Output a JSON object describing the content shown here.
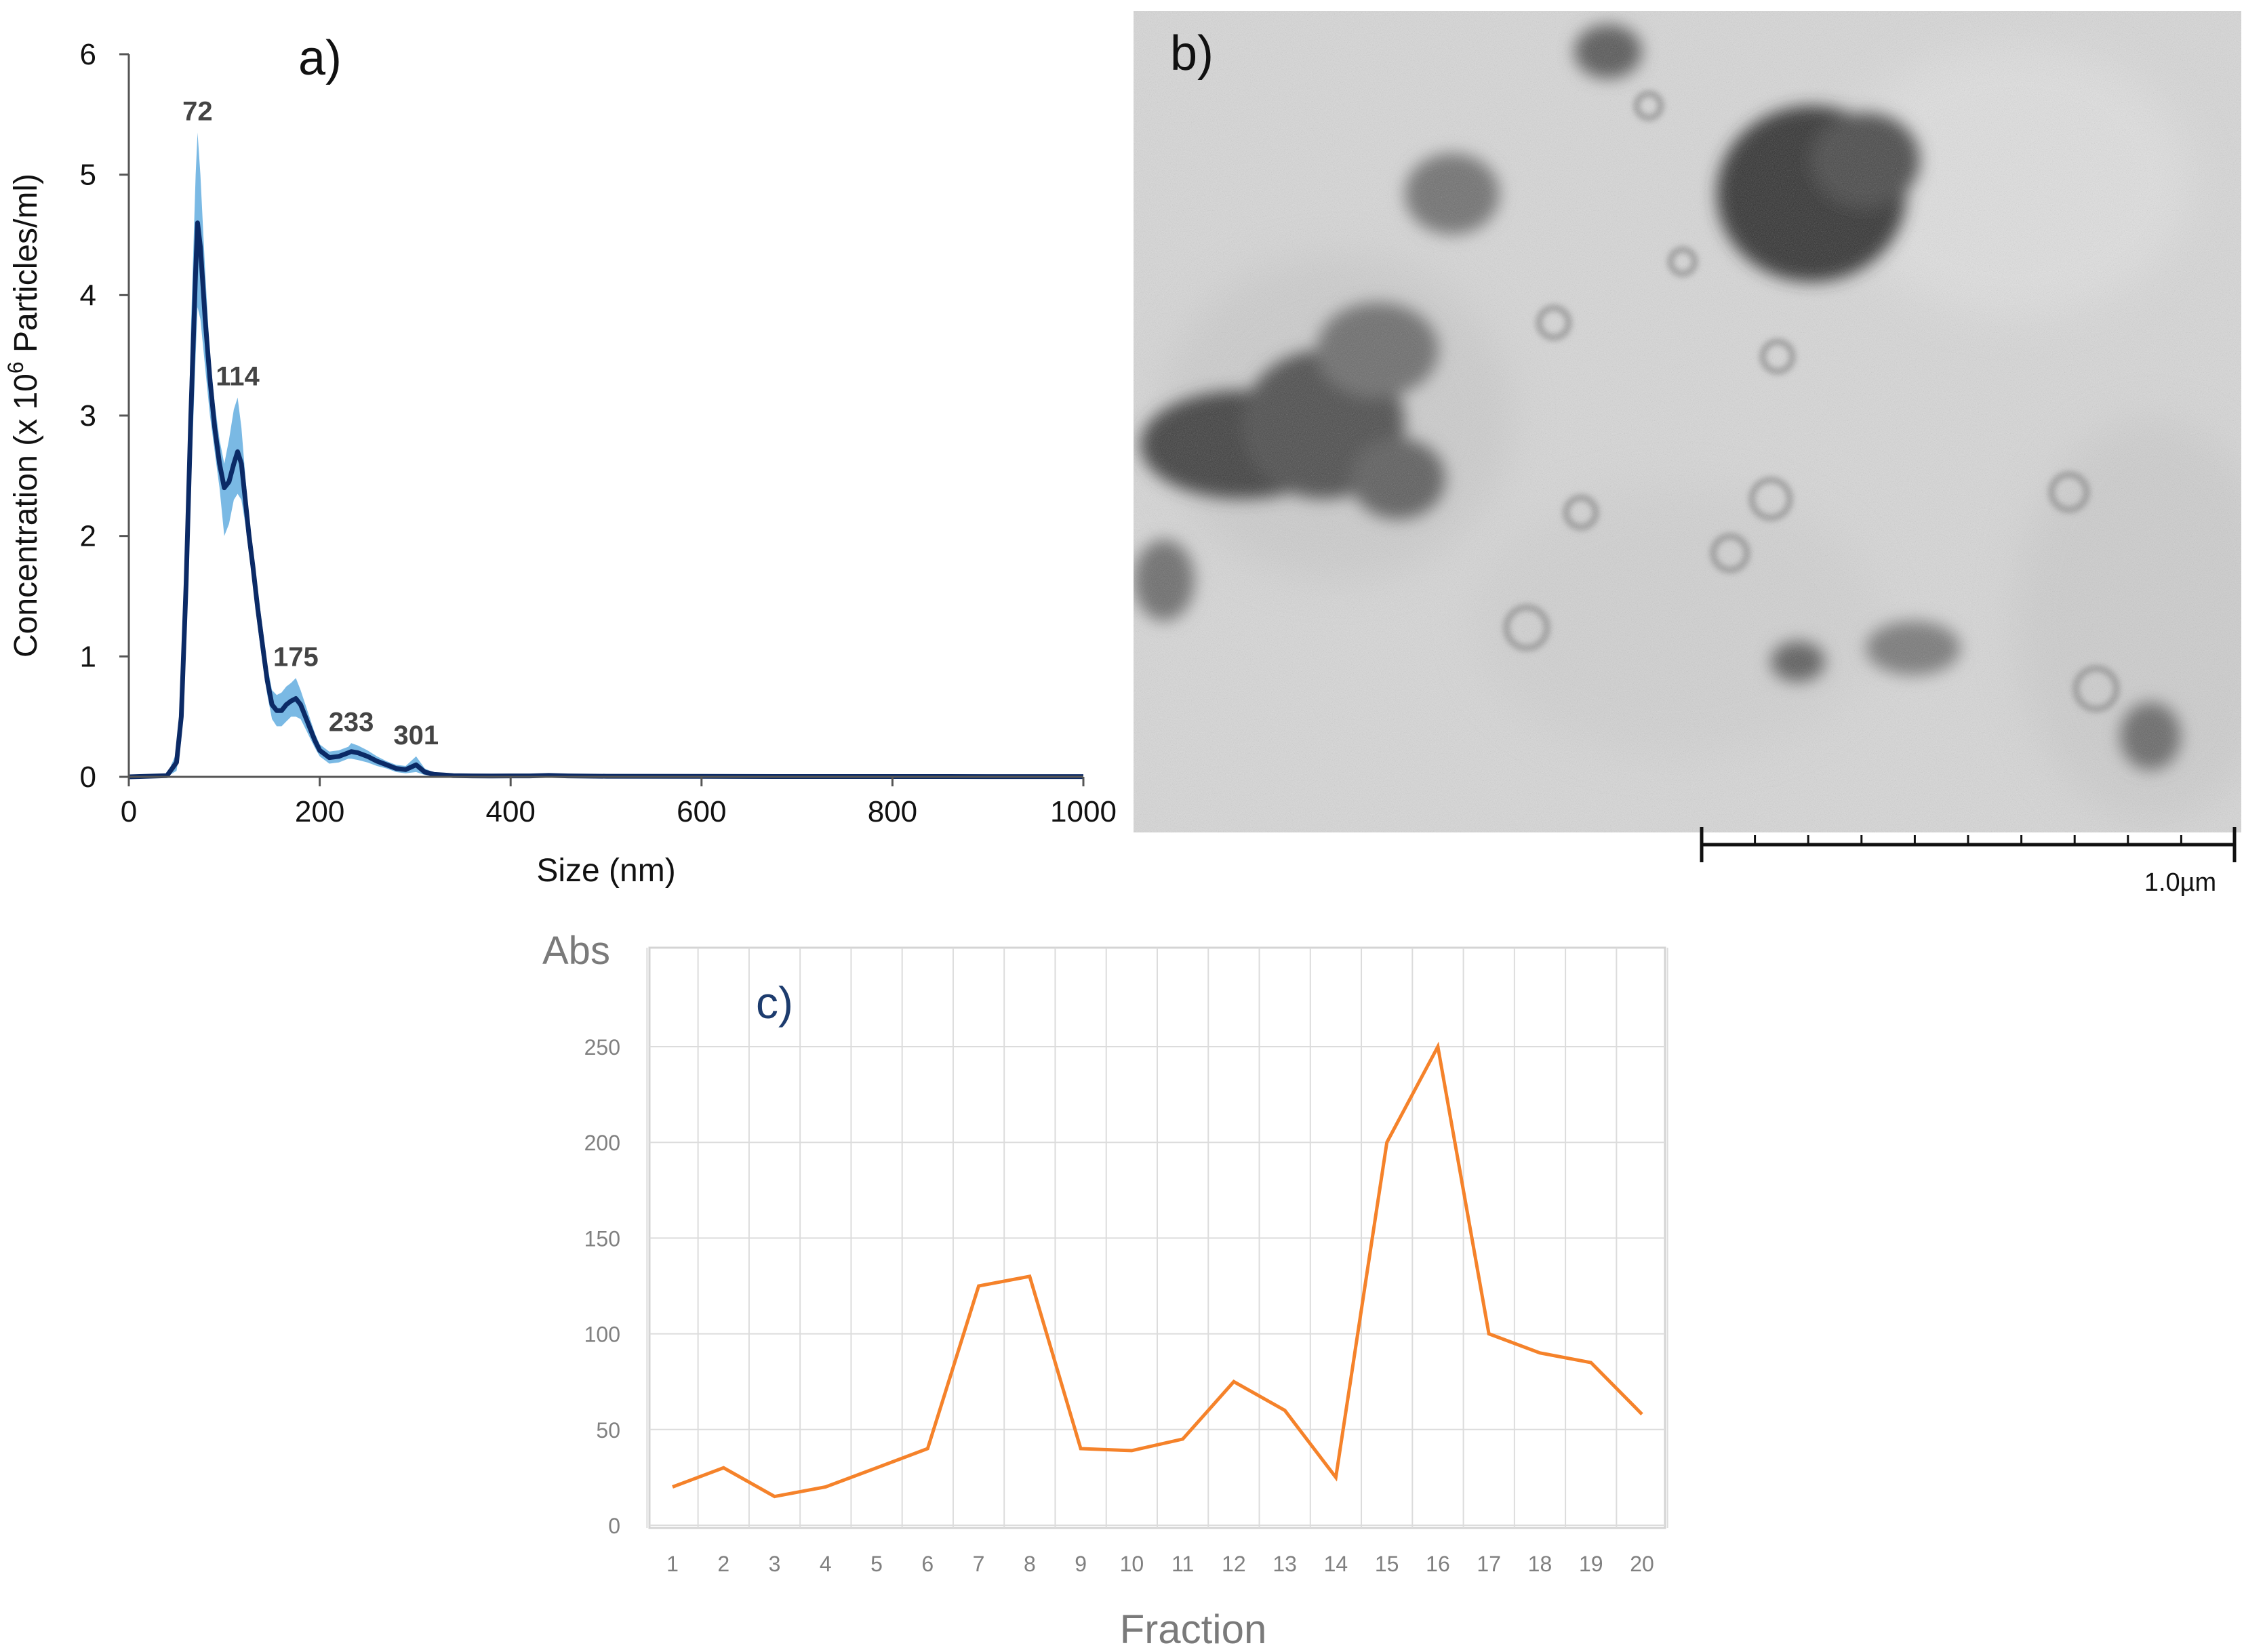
{
  "panels": {
    "a": {
      "label": "a)",
      "chart_data": {
        "type": "line",
        "xlabel": "Size (nm)",
        "ylabel_pre": "Concentration (x 10",
        "ylabel_sup": "6",
        "ylabel_post": " Particles/ml)",
        "xlim": [
          0,
          1000
        ],
        "ylim": [
          0,
          6
        ],
        "xticks": [
          0,
          200,
          400,
          600,
          800,
          1000
        ],
        "yticks": [
          0,
          1,
          2,
          3,
          4,
          5,
          6
        ],
        "grid": false,
        "series": [
          {
            "role": "mean",
            "color": "#0b2a66",
            "x": [
              0,
              40,
              50,
              55,
              60,
              65,
              70,
              72,
              75,
              80,
              85,
              90,
              95,
              100,
              105,
              110,
              114,
              118,
              122,
              126,
              130,
              135,
              140,
              145,
              150,
              155,
              160,
              165,
              170,
              175,
              180,
              185,
              190,
              195,
              200,
              210,
              220,
              230,
              233,
              240,
              250,
              260,
              270,
              280,
              290,
              301,
              310,
              320,
              330,
              340,
              360,
              380,
              400,
              420,
              440,
              460,
              500,
              600,
              700,
              800,
              900,
              1000
            ],
            "y": [
              0,
              0.01,
              0.12,
              0.5,
              1.6,
              3.0,
              4.2,
              4.6,
              4.4,
              3.8,
              3.3,
              2.9,
              2.6,
              2.4,
              2.45,
              2.6,
              2.7,
              2.6,
              2.3,
              2.0,
              1.75,
              1.4,
              1.1,
              0.8,
              0.6,
              0.55,
              0.55,
              0.6,
              0.63,
              0.65,
              0.6,
              0.5,
              0.4,
              0.3,
              0.22,
              0.16,
              0.17,
              0.2,
              0.21,
              0.2,
              0.17,
              0.13,
              0.1,
              0.07,
              0.06,
              0.1,
              0.04,
              0.02,
              0.015,
              0.01,
              0.008,
              0.007,
              0.008,
              0.008,
              0.012,
              0.008,
              0.005,
              0.004,
              0.003,
              0.003,
              0.002,
              0.002
            ]
          },
          {
            "role": "error-band",
            "color": "#7ab9e4",
            "x": [
              0,
              40,
              50,
              55,
              60,
              65,
              70,
              72,
              75,
              80,
              85,
              90,
              95,
              100,
              105,
              110,
              114,
              118,
              122,
              126,
              130,
              135,
              140,
              145,
              150,
              155,
              160,
              165,
              170,
              175,
              180,
              185,
              190,
              195,
              200,
              210,
              220,
              230,
              233,
              240,
              250,
              260,
              270,
              280,
              290,
              301,
              310,
              320,
              330,
              340,
              360,
              380,
              400,
              420,
              440,
              460,
              500,
              600,
              700,
              800,
              900,
              1000
            ],
            "upper": [
              0,
              0.02,
              0.2,
              0.75,
              2.0,
              3.7,
              5.0,
              5.35,
              5.0,
              4.2,
              3.5,
              3.1,
              2.8,
              2.6,
              2.8,
              3.05,
              3.15,
              2.9,
              2.5,
              2.15,
              1.9,
              1.55,
              1.25,
              0.93,
              0.72,
              0.68,
              0.7,
              0.75,
              0.78,
              0.82,
              0.72,
              0.6,
              0.48,
              0.36,
              0.27,
              0.21,
              0.22,
              0.25,
              0.28,
              0.26,
              0.22,
              0.17,
              0.13,
              0.1,
              0.09,
              0.17,
              0.07,
              0.035,
              0.025,
              0.018,
              0.014,
              0.012,
              0.013,
              0.015,
              0.025,
              0.015,
              0.01,
              0.008,
              0.006,
              0.005,
              0.004,
              0.004
            ],
            "lower": [
              0,
              0,
              0.05,
              0.3,
              1.2,
              2.4,
              3.5,
              3.9,
              3.8,
              3.4,
              3.0,
              2.7,
              2.4,
              2.0,
              2.1,
              2.3,
              2.35,
              2.3,
              2.1,
              1.85,
              1.6,
              1.25,
              0.95,
              0.68,
              0.48,
              0.42,
              0.42,
              0.46,
              0.5,
              0.5,
              0.48,
              0.4,
              0.32,
              0.24,
              0.17,
              0.11,
              0.12,
              0.15,
              0.15,
              0.14,
              0.12,
              0.09,
              0.07,
              0.04,
              0.03,
              0.04,
              0.015,
              0.005,
              0.005,
              0.003,
              0.002,
              0.002,
              0.003,
              0.002,
              0.0,
              0.002,
              0.001,
              0.001,
              0.0,
              0.0,
              0.0,
              0.0
            ]
          }
        ],
        "annotations": [
          {
            "text": "72",
            "x": 72,
            "y": 5.35
          },
          {
            "text": "114",
            "x": 114,
            "y": 3.15
          },
          {
            "text": "175",
            "x": 175,
            "y": 0.82
          },
          {
            "text": "233",
            "x": 233,
            "y": 0.28
          },
          {
            "text": "301",
            "x": 301,
            "y": 0.17
          }
        ]
      }
    },
    "b": {
      "label": "b)",
      "scale_label": "1.0µm"
    },
    "c": {
      "label": "c)",
      "chart_data": {
        "type": "line",
        "xlabel": "Fraction",
        "ylabel": "Abs",
        "ylim": [
          0,
          250
        ],
        "yticks": [
          0,
          50,
          100,
          150,
          200,
          250
        ],
        "grid": true,
        "categories": [
          "1",
          "2",
          "3",
          "4",
          "5",
          "6",
          "7",
          "8",
          "9",
          "10",
          "11",
          "12",
          "13",
          "14",
          "15",
          "16",
          "17",
          "18",
          "19",
          "20"
        ],
        "series": [
          {
            "color": "#f5822a",
            "values": [
              20,
              30,
              15,
              20,
              30,
              40,
              125,
              130,
              40,
              39,
              45,
              75,
              60,
              25,
              200,
              250,
              100,
              90,
              85,
              58
            ]
          }
        ]
      }
    }
  }
}
